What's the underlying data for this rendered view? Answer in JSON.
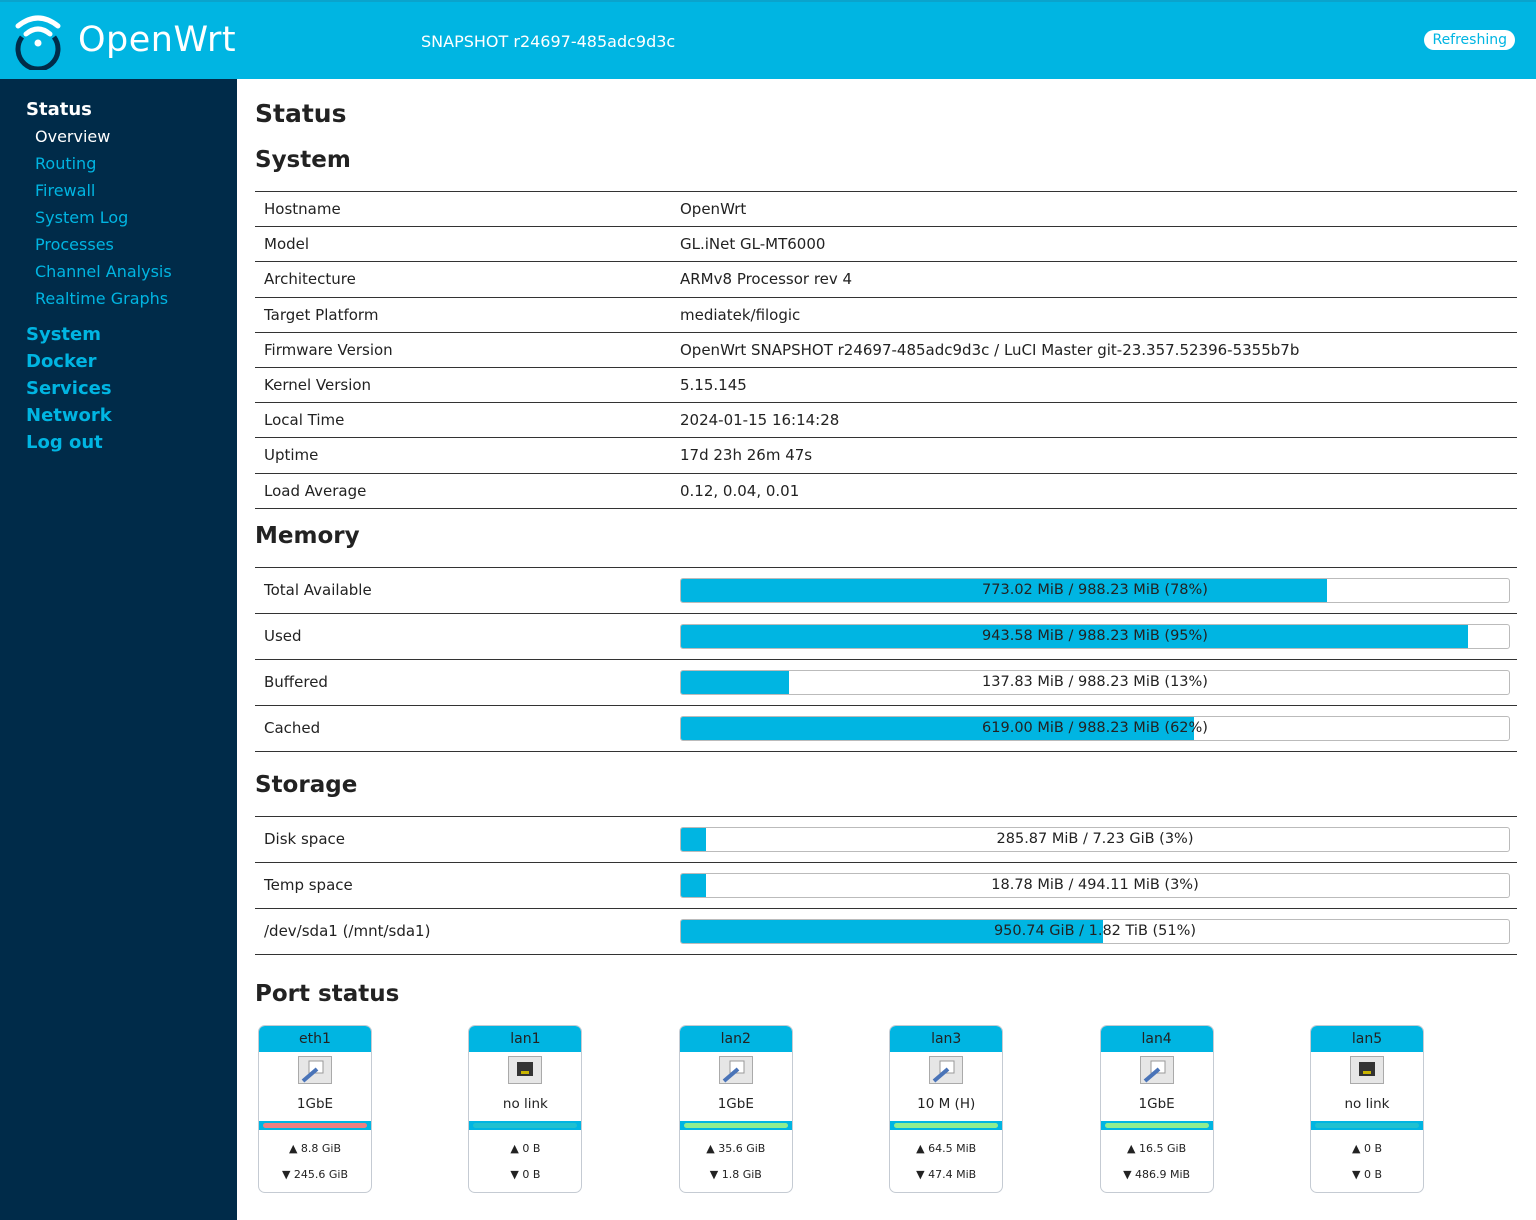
{
  "header": {
    "brand": "OpenWrt",
    "version": "SNAPSHOT r24697-485adc9d3c",
    "refresh": "Refreshing"
  },
  "colors": {
    "accent": "#00b5e2",
    "sidebar": "#002b49",
    "tx_red": "#f08080",
    "tx_green": "#90ee90",
    "tx_nolink": "#20c0d0"
  },
  "sidebar": {
    "sections": [
      {
        "label": "Status",
        "active": true,
        "items": [
          {
            "label": "Overview",
            "active": true
          },
          {
            "label": "Routing"
          },
          {
            "label": "Firewall"
          },
          {
            "label": "System Log"
          },
          {
            "label": "Processes"
          },
          {
            "label": "Channel Analysis"
          },
          {
            "label": "Realtime Graphs"
          }
        ]
      },
      {
        "label": "System"
      },
      {
        "label": "Docker"
      },
      {
        "label": "Services"
      },
      {
        "label": "Network"
      },
      {
        "label": "Log out"
      }
    ]
  },
  "page_title": "Status",
  "system": {
    "title": "System",
    "rows": [
      {
        "label": "Hostname",
        "value": "OpenWrt"
      },
      {
        "label": "Model",
        "value": "GL.iNet GL-MT6000"
      },
      {
        "label": "Architecture",
        "value": "ARMv8 Processor rev 4"
      },
      {
        "label": "Target Platform",
        "value": "mediatek/filogic"
      },
      {
        "label": "Firmware Version",
        "value": "OpenWrt SNAPSHOT r24697-485adc9d3c / LuCI Master git-23.357.52396-5355b7b"
      },
      {
        "label": "Kernel Version",
        "value": "5.15.145"
      },
      {
        "label": "Local Time",
        "value": "2024-01-15 16:14:28"
      },
      {
        "label": "Uptime",
        "value": "17d 23h 26m 47s"
      },
      {
        "label": "Load Average",
        "value": "0.12, 0.04, 0.01"
      }
    ]
  },
  "memory": {
    "title": "Memory",
    "rows": [
      {
        "label": "Total Available",
        "text": "773.02 MiB / 988.23 MiB (78%)",
        "percent": 78
      },
      {
        "label": "Used",
        "text": "943.58 MiB / 988.23 MiB (95%)",
        "percent": 95
      },
      {
        "label": "Buffered",
        "text": "137.83 MiB / 988.23 MiB (13%)",
        "percent": 13
      },
      {
        "label": "Cached",
        "text": "619.00 MiB / 988.23 MiB (62%)",
        "percent": 62
      }
    ]
  },
  "storage": {
    "title": "Storage",
    "rows": [
      {
        "label": "Disk space",
        "text": "285.87 MiB / 7.23 GiB (3%)",
        "percent": 3
      },
      {
        "label": "Temp space",
        "text": "18.78 MiB / 494.11 MiB (3%)",
        "percent": 3
      },
      {
        "label": "/dev/sda1 (/mnt/sda1)",
        "text": "950.74 GiB / 1.82 TiB (51%)",
        "percent": 51
      }
    ]
  },
  "ports": {
    "title": "Port status",
    "items": [
      {
        "name": "eth1",
        "speed": "1GbE",
        "link": true,
        "status": "red",
        "tx": "▲ 8.8 GiB",
        "rx": "▼ 245.6 GiB"
      },
      {
        "name": "lan1",
        "speed": "no link",
        "link": false,
        "status": "nolink",
        "tx": "▲ 0 B",
        "rx": "▼ 0 B"
      },
      {
        "name": "lan2",
        "speed": "1GbE",
        "link": true,
        "status": "green",
        "tx": "▲ 35.6 GiB",
        "rx": "▼ 1.8 GiB"
      },
      {
        "name": "lan3",
        "speed": "10 M (H)",
        "link": true,
        "status": "green",
        "tx": "▲ 64.5 MiB",
        "rx": "▼ 47.4 MiB"
      },
      {
        "name": "lan4",
        "speed": "1GbE",
        "link": true,
        "status": "green",
        "tx": "▲ 16.5 GiB",
        "rx": "▼ 486.9 MiB"
      },
      {
        "name": "lan5",
        "speed": "no link",
        "link": false,
        "status": "nolink",
        "tx": "▲ 0 B",
        "rx": "▼ 0 B"
      }
    ]
  }
}
